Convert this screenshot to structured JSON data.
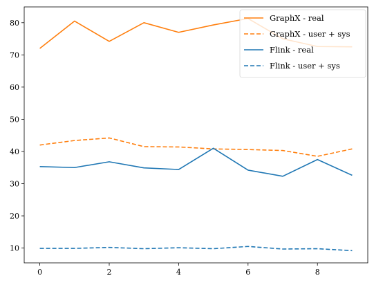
{
  "chart_data": {
    "type": "line",
    "x": [
      0,
      1,
      2,
      3,
      4,
      5,
      6,
      7,
      8,
      9
    ],
    "series": [
      {
        "name": "GraphX - real",
        "color": "#ff7f0e",
        "dash": "solid",
        "values": [
          72.0,
          80.5,
          74.2,
          80.0,
          77.0,
          79.3,
          81.3,
          75.0,
          72.6,
          72.5
        ]
      },
      {
        "name": "GraphX - user + sys",
        "color": "#ff7f0e",
        "dash": "dashed",
        "values": [
          42.0,
          43.4,
          44.2,
          41.5,
          41.4,
          40.8,
          40.6,
          40.3,
          38.5,
          40.8
        ]
      },
      {
        "name": "Flink - real",
        "color": "#1f77b4",
        "dash": "solid",
        "values": [
          35.3,
          35.0,
          36.8,
          34.9,
          34.4,
          41.0,
          34.2,
          32.3,
          37.5,
          32.6
        ]
      },
      {
        "name": "Flink - user + sys",
        "color": "#1f77b4",
        "dash": "dashed",
        "values": [
          9.9,
          9.9,
          10.2,
          9.8,
          10.1,
          9.8,
          10.5,
          9.7,
          9.8,
          9.2
        ]
      }
    ],
    "title": "",
    "xlabel": "",
    "ylabel": "",
    "xlim": [
      -0.45,
      9.45
    ],
    "ylim": [
      5.4,
      84.9
    ],
    "xticks": [
      0,
      2,
      4,
      6,
      8
    ],
    "yticks": [
      10,
      20,
      30,
      40,
      50,
      60,
      70,
      80
    ],
    "grid": false,
    "legend_position": "upper right"
  }
}
